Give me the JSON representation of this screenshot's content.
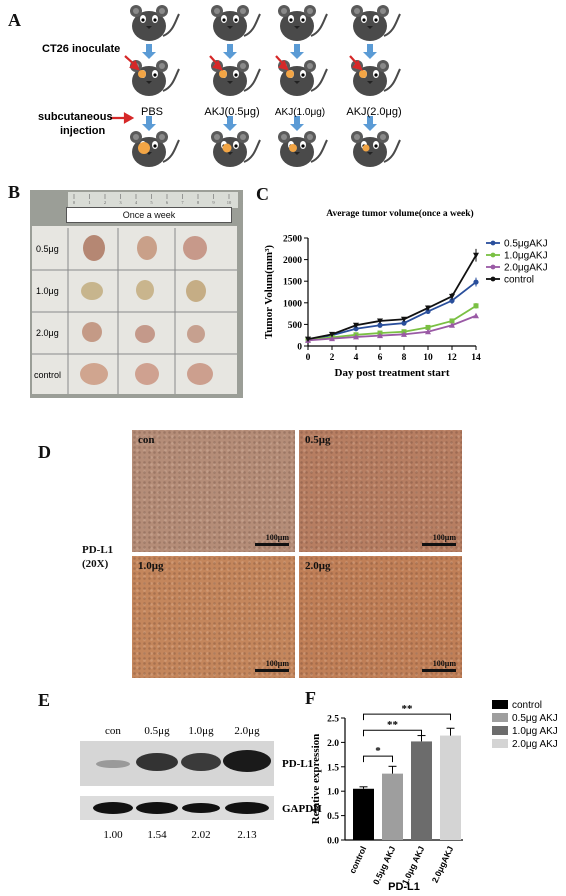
{
  "panelA": {
    "label": "A",
    "inoculate": "CT26 inoculate",
    "injection": "subcutaneous\ninjection",
    "groups": [
      "PBS",
      "AKJ(0.5μg)",
      "AKJ(1.0μg)",
      "AKJ(2.0μg)"
    ]
  },
  "panelB": {
    "label": "B",
    "header": "Once a week",
    "ruler_ticks": [
      "0",
      "1",
      "2",
      "3",
      "4",
      "5",
      "6",
      "7",
      "8",
      "9",
      "10",
      "11"
    ],
    "rows": [
      "0.5μg",
      "1.0μg",
      "2.0μg",
      "control"
    ]
  },
  "panelC": {
    "label": "C",
    "chart_data": {
      "type": "line",
      "title": "Average tumor volume(once a week)",
      "xlabel": "Day post treatment start",
      "ylabel": "Tumor Volum(mm³)",
      "x": [
        0,
        2,
        4,
        6,
        8,
        10,
        12,
        14
      ],
      "xlim": [
        0,
        14
      ],
      "ylim": [
        0,
        2500
      ],
      "yticks": [
        0,
        500,
        1000,
        1500,
        2000,
        2500
      ],
      "legend_position": "top-right",
      "series": [
        {
          "name": "0.5μgAKJ",
          "color": "#2a4f9c",
          "marker": "circle",
          "values": [
            150,
            250,
            400,
            480,
            530,
            800,
            1050,
            1480
          ]
        },
        {
          "name": "1.0μgAKJ",
          "color": "#7ac043",
          "marker": "square",
          "values": [
            140,
            200,
            260,
            300,
            330,
            430,
            580,
            930
          ]
        },
        {
          "name": "2.0μgAKJ",
          "color": "#9a5aa5",
          "marker": "triangle",
          "values": [
            130,
            170,
            210,
            240,
            270,
            330,
            480,
            700
          ]
        },
        {
          "name": "control",
          "color": "#111111",
          "marker": "triangle-down",
          "values": [
            160,
            270,
            480,
            580,
            620,
            880,
            1150,
            2100
          ]
        }
      ]
    }
  },
  "panelD": {
    "label": "D",
    "stain": "PD-L1",
    "mag": "(20X)",
    "panels": [
      "con",
      "0.5μg",
      "1.0μg",
      "2.0μg"
    ],
    "scalebar": "100μm",
    "colors": [
      "#b58d78",
      "#b77e62",
      "#c4865c",
      "#c07f57"
    ]
  },
  "panelE": {
    "label": "E",
    "lanes": [
      "con",
      "0.5μg",
      "1.0μg",
      "2.0μg"
    ],
    "bands": [
      "PD-L1",
      "GAPDH"
    ],
    "quant": [
      "1.00",
      "1.54",
      "2.02",
      "2.13"
    ]
  },
  "panelF": {
    "label": "F",
    "chart_data": {
      "type": "bar",
      "categories": [
        "control",
        "0.5μg AKJ",
        "1.0μg AKJ",
        "2.0μgAKJ"
      ],
      "values": [
        1.05,
        1.36,
        2.02,
        2.14
      ],
      "errors": [
        0.04,
        0.15,
        0.12,
        0.15
      ],
      "colors": [
        "#000000",
        "#9e9e9e",
        "#6c6c6c",
        "#d4d4d4"
      ],
      "ylabel": "Relative expression",
      "xlabel": "PD-L1",
      "ylim": [
        0.0,
        2.5
      ],
      "yticks": [
        "0.0",
        "0.5",
        "1.0",
        "1.5",
        "2.0",
        "2.5"
      ],
      "legend": [
        "control",
        "0.5μg AKJ",
        "1.0μg AKJ",
        "2.0μg AKJ"
      ],
      "legend_position": "right",
      "significance": [
        {
          "from": 0,
          "to": 1,
          "label": "*"
        },
        {
          "from": 0,
          "to": 2,
          "label": "**"
        },
        {
          "from": 0,
          "to": 3,
          "label": "**"
        }
      ]
    }
  }
}
